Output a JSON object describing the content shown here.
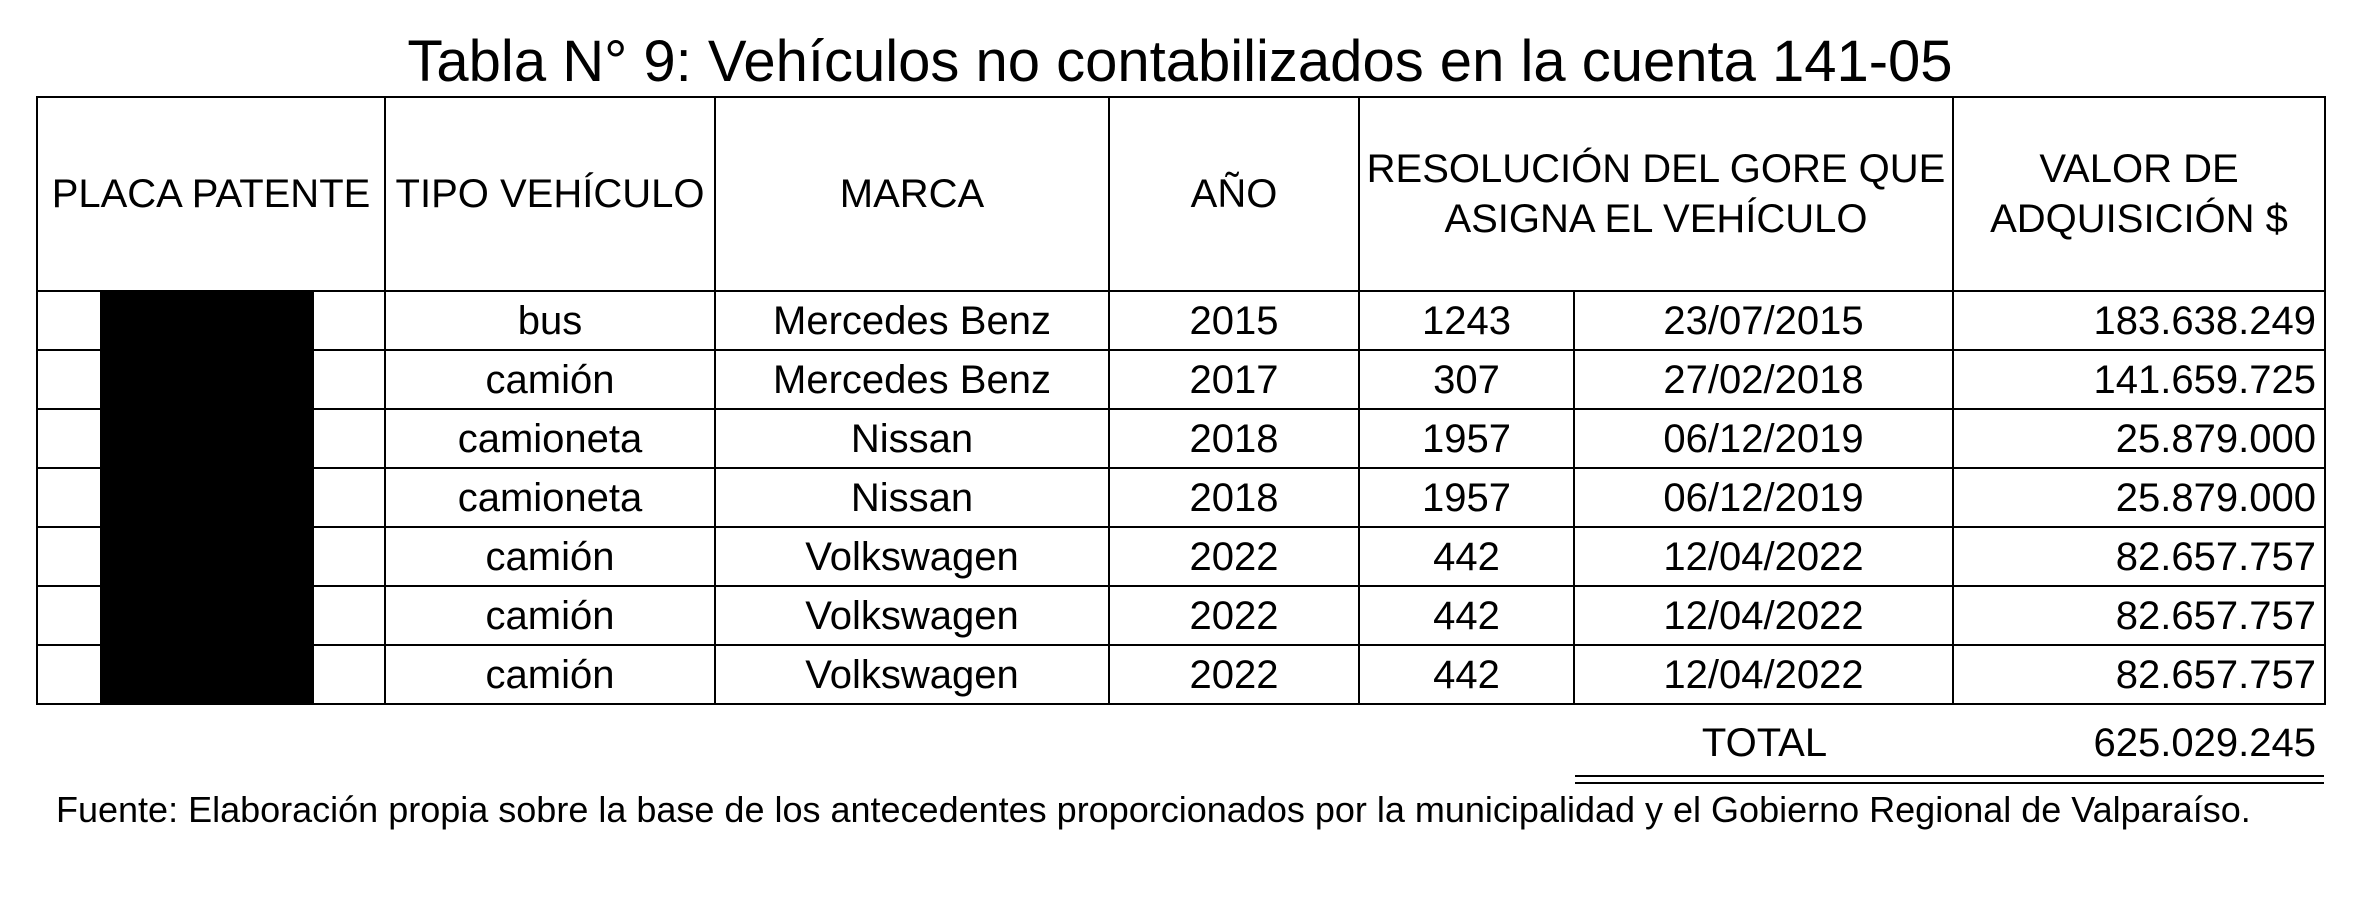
{
  "title": "Tabla N° 9: Vehículos no contabilizados en la cuenta 141-05",
  "table": {
    "headers": {
      "placa": "PLACA PATENTE",
      "tipo": "TIPO VEHÍCULO",
      "marca": "MARCA",
      "anio": "AÑO",
      "resolucion": "RESOLUCIÓN DEL GORE QUE ASIGNA EL VEHÍCULO",
      "valor": "VALOR DE ADQUISICIÓN $"
    },
    "rows": [
      {
        "tipo": "bus",
        "marca": "Mercedes Benz",
        "anio": "2015",
        "resolucion_numero": "1243",
        "resolucion_fecha": "23/07/2015",
        "valor": "183.638.249"
      },
      {
        "tipo": "camión",
        "marca": "Mercedes Benz",
        "anio": "2017",
        "resolucion_numero": "307",
        "resolucion_fecha": "27/02/2018",
        "valor": "141.659.725"
      },
      {
        "tipo": "camioneta",
        "marca": "Nissan",
        "anio": "2018",
        "resolucion_numero": "1957",
        "resolucion_fecha": "06/12/2019",
        "valor": "25.879.000"
      },
      {
        "tipo": "camioneta",
        "marca": "Nissan",
        "anio": "2018",
        "resolucion_numero": "1957",
        "resolucion_fecha": "06/12/2019",
        "valor": "25.879.000"
      },
      {
        "tipo": "camión",
        "marca": "Volkswagen",
        "anio": "2022",
        "resolucion_numero": "442",
        "resolucion_fecha": "12/04/2022",
        "valor": "82.657.757"
      },
      {
        "tipo": "camión",
        "marca": "Volkswagen",
        "anio": "2022",
        "resolucion_numero": "442",
        "resolucion_fecha": "12/04/2022",
        "valor": "82.657.757"
      },
      {
        "tipo": "camión",
        "marca": "Volkswagen",
        "anio": "2022",
        "resolucion_numero": "442",
        "resolucion_fecha": "12/04/2022",
        "valor": "82.657.757"
      }
    ],
    "total_label": "TOTAL",
    "total_value": "625.029.245"
  },
  "source": "Fuente: Elaboración propia sobre la base de los antecedentes proporcionados por la municipalidad y el Gobierno Regional de Valparaíso."
}
